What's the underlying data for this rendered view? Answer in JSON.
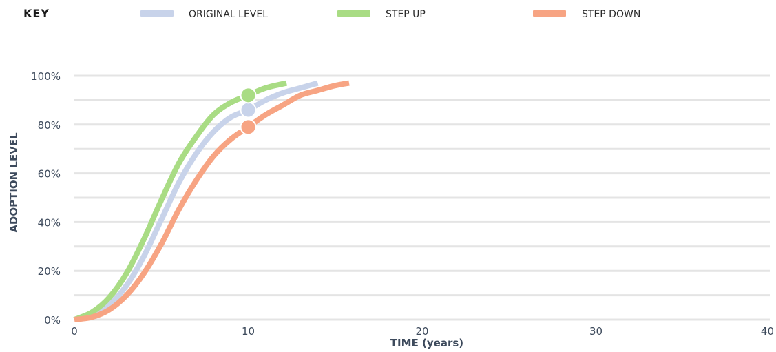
{
  "key": {
    "title": "KEY",
    "items": [
      {
        "label": "ORIGINAL LEVEL",
        "color": "#c8d3ea"
      },
      {
        "label": "STEP UP",
        "color": "#a9dc84"
      },
      {
        "label": "STEP DOWN",
        "color": "#f7a483"
      }
    ]
  },
  "chart_data": {
    "type": "line",
    "xlabel": "TIME (years)",
    "ylabel": "ADOPTION LEVEL",
    "xlim": [
      0,
      40
    ],
    "ylim": [
      0,
      100
    ],
    "x_ticks": [
      "0",
      "10",
      "20",
      "30",
      "40"
    ],
    "y_ticks": [
      "0%",
      "20%",
      "40%",
      "60%",
      "80%",
      "100%"
    ],
    "grid": true,
    "legend": "top",
    "series": [
      {
        "name": "ORIGINAL LEVEL",
        "color": "#c8d3ea",
        "x": [
          0,
          1,
          2,
          3,
          4,
          5,
          6,
          7,
          8,
          9,
          10,
          11,
          12,
          13,
          14
        ],
        "y": [
          0,
          2,
          6,
          14,
          26,
          41,
          56,
          68,
          77,
          83,
          86,
          90,
          93,
          95,
          97
        ],
        "marker": {
          "x": 10,
          "y": 86
        }
      },
      {
        "name": "STEP UP",
        "color": "#a9dc84",
        "x": [
          0,
          1,
          2,
          3,
          4,
          5,
          6,
          7,
          8,
          9,
          10,
          11,
          12.2
        ],
        "y": [
          0,
          3,
          9,
          19,
          33,
          49,
          64,
          75,
          84,
          89,
          92,
          95,
          97
        ],
        "marker": {
          "x": 10,
          "y": 92
        }
      },
      {
        "name": "STEP DOWN",
        "color": "#f7a483",
        "x": [
          0,
          1,
          2,
          3,
          4,
          5,
          6,
          7,
          8,
          9,
          10,
          11,
          12,
          13,
          14,
          15,
          15.8
        ],
        "y": [
          0,
          1,
          4,
          10,
          19,
          31,
          45,
          57,
          67,
          74,
          79,
          84,
          88,
          92,
          94,
          96,
          97
        ],
        "marker": {
          "x": 10,
          "y": 79
        }
      }
    ]
  }
}
